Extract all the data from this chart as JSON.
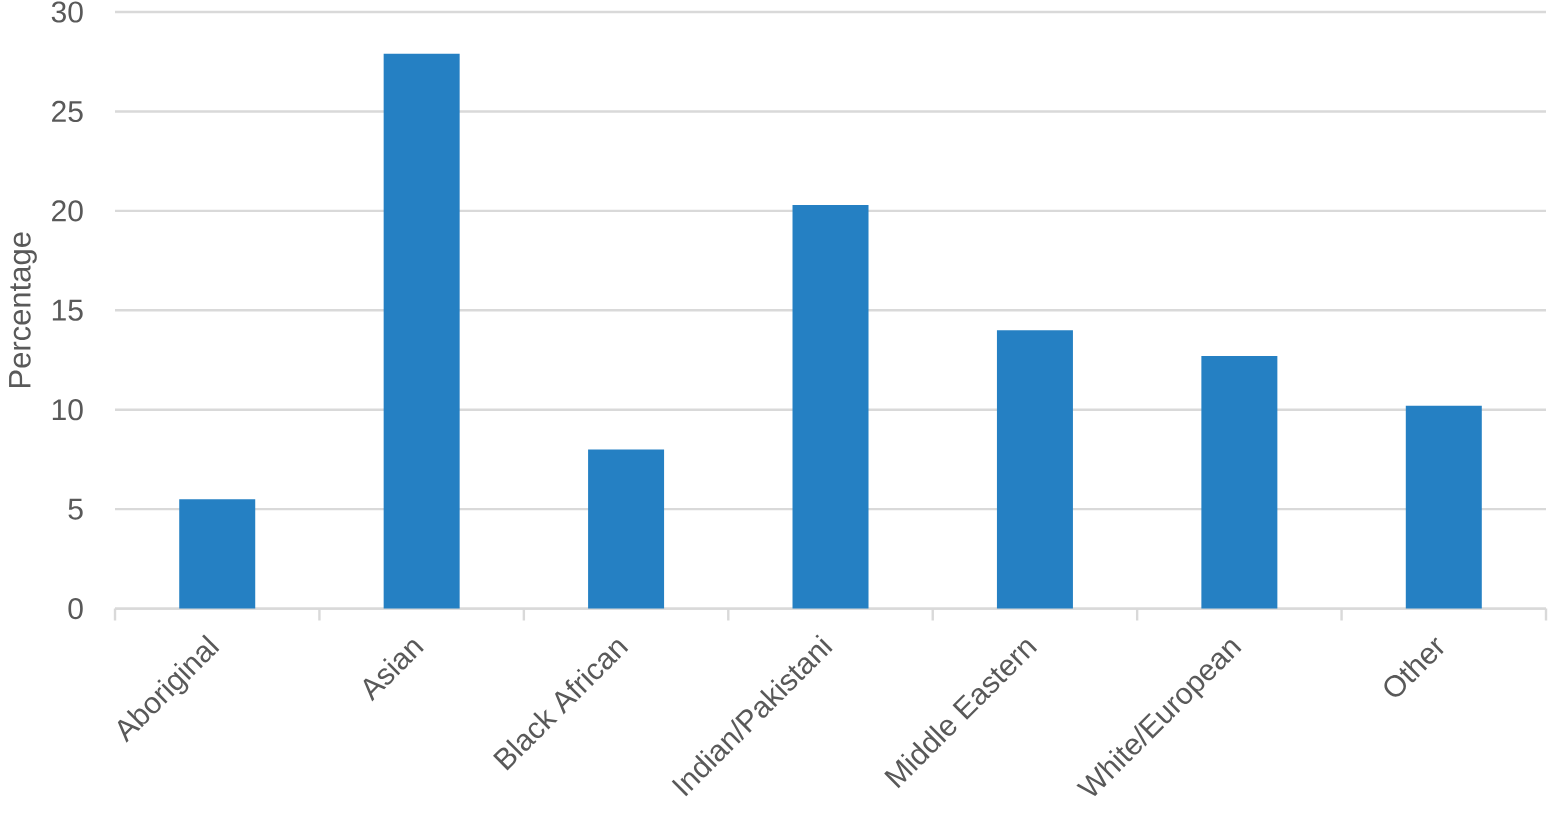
{
  "chart_data": {
    "type": "bar",
    "ylabel": "Percentage",
    "categories": [
      "Aboriginal",
      "Asian",
      "Black African",
      "Indian/Pakistani",
      "Middle Eastern",
      "White/European",
      "Other"
    ],
    "values": [
      5.5,
      27.9,
      8.0,
      20.3,
      14.0,
      12.7,
      10.2
    ],
    "color": "#2580c3",
    "ylim": [
      0,
      30
    ],
    "yticks": [
      0,
      5,
      10,
      15,
      20,
      25,
      30
    ],
    "grid": "y"
  }
}
